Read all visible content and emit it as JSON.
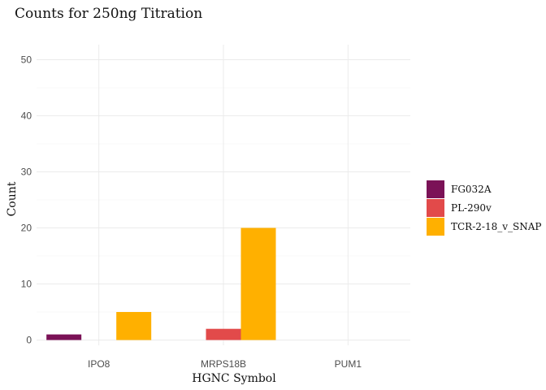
{
  "chart_data": {
    "type": "bar",
    "title": "Counts for 250ng Titration",
    "xlabel": "HGNC Symbol",
    "ylabel": "Count",
    "categories": [
      "IPO8",
      "MRPS18B",
      "PUM1"
    ],
    "series": [
      {
        "name": "FG032A",
        "color": "#7b1257",
        "values": [
          1,
          0,
          0
        ]
      },
      {
        "name": "PL-290v",
        "color": "#e24a4a",
        "values": [
          0,
          2,
          0
        ]
      },
      {
        "name": "TCR-2-18_v_SNAP",
        "color": "#ffb000",
        "values": [
          5,
          20,
          0
        ]
      }
    ],
    "ylim": [
      0,
      50
    ],
    "yticks": [
      0,
      10,
      20,
      30,
      40,
      50
    ],
    "grid": true,
    "legend": "right"
  }
}
